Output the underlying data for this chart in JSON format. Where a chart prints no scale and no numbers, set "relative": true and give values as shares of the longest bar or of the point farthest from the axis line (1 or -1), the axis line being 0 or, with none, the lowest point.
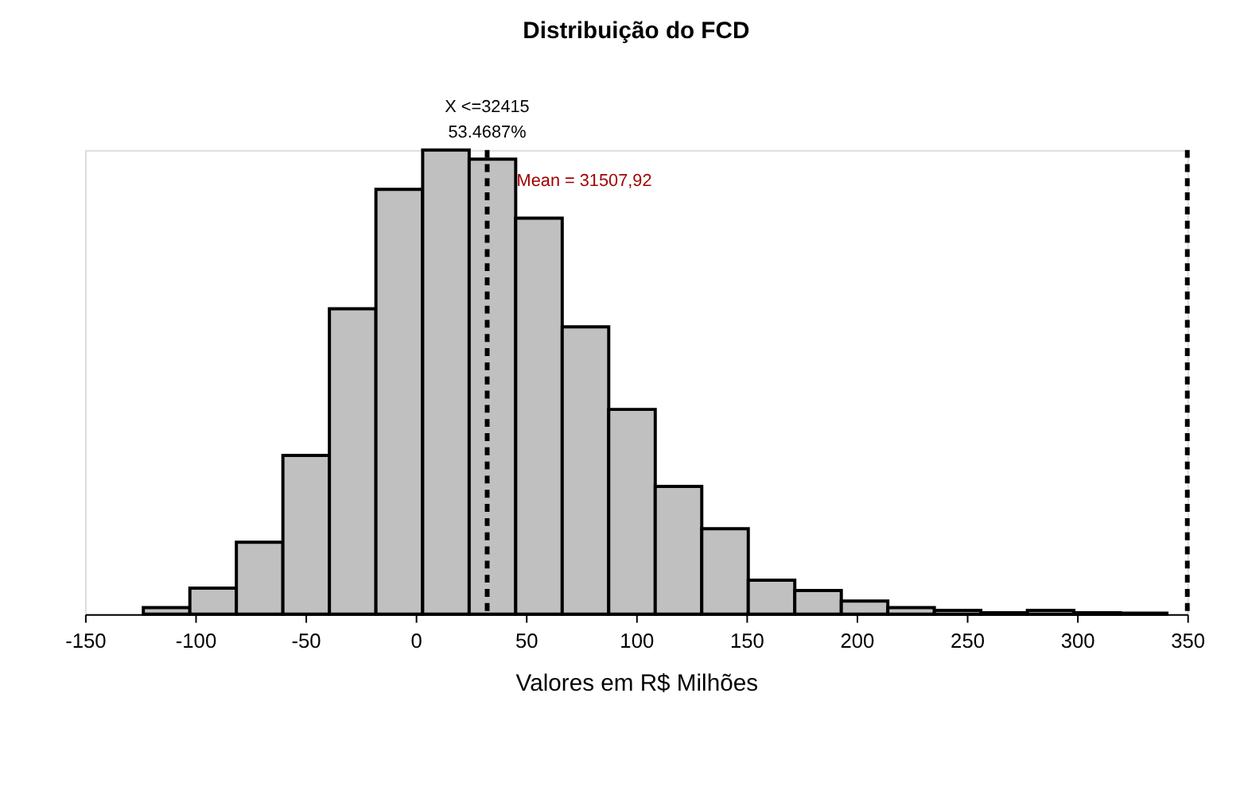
{
  "chart_data": {
    "type": "bar",
    "title": "Distribuição do FCD",
    "xlabel": "Valores em R$ Milhões",
    "x": [
      -113,
      -91.9,
      -70.8,
      -49.7,
      -28.6,
      -7.5,
      13.7,
      34.8,
      55.9,
      77,
      98.1,
      119.2,
      140.3,
      161.4,
      182.5,
      203.6,
      224.7,
      245.8,
      266.9,
      288,
      309.1,
      330.2
    ],
    "values": [
      0.014,
      0.056,
      0.155,
      0.342,
      0.658,
      0.915,
      1.0,
      0.98,
      0.853,
      0.619,
      0.441,
      0.275,
      0.184,
      0.073,
      0.051,
      0.028,
      0.014,
      0.008,
      0.003,
      0.008,
      0.003,
      0.002
    ],
    "relative": true,
    "color": "#c0c0c0",
    "xlim": [
      -150,
      350
    ],
    "xticks": [
      -150,
      -100,
      -50,
      0,
      50,
      100,
      150,
      200,
      250,
      300,
      350
    ],
    "grid": false,
    "tick_labels": "x",
    "ref_lines": [
      {
        "axis": "x",
        "value": 32.415,
        "label": "X <=32415",
        "line_style": "dashed",
        "color": "#000000"
      },
      {
        "axis": "x",
        "value": 350,
        "line_style": "dashed",
        "color": "#000000"
      }
    ],
    "annotations": [
      "53.4687%",
      {
        "text": "Mean = 31507,92",
        "x": 31.50792
      }
    ]
  }
}
